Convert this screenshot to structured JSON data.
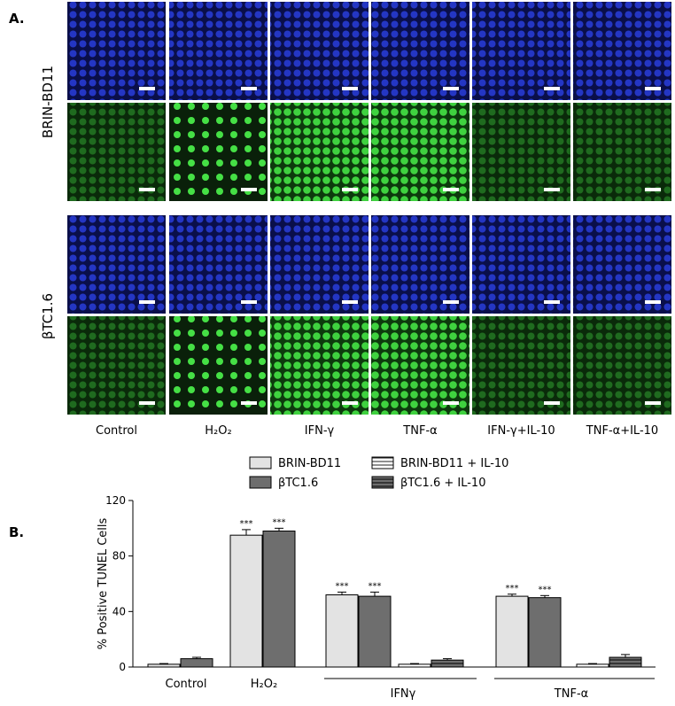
{
  "panel_a": {
    "label": "A.",
    "rows": [
      "BRIN-BD11",
      "βTC1.6"
    ],
    "columns": [
      "Control",
      "H₂O₂",
      "IFN-γ",
      "TNF-α",
      "IFN-γ+IL-10",
      "TNF-α+IL-10"
    ]
  },
  "panel_b": {
    "label": "B.",
    "chart_data": {
      "type": "bar",
      "y_label": "% Positive TUNEL Cells",
      "categories": [
        "Control",
        "H₂O₂",
        "IFNγ",
        "TNF-α"
      ],
      "series": [
        {
          "name": "BRIN-BD11",
          "color": "#e3e3e3",
          "values": [
            2,
            95,
            52,
            51
          ],
          "errors": [
            0.5,
            4,
            2,
            1.5
          ],
          "annotations": [
            null,
            "***",
            "***",
            "***"
          ]
        },
        {
          "name": "βTC1.6",
          "color": "#6e6e6e",
          "values": [
            6,
            98,
            51,
            50
          ],
          "errors": [
            1,
            2,
            3,
            1.5
          ],
          "annotations": [
            null,
            "***",
            "***",
            "***"
          ]
        },
        {
          "name": "BRIN-BD11 + IL-10",
          "color": "#ffffff",
          "pattern": "stripes",
          "values": [
            null,
            null,
            2,
            2
          ],
          "errors": [
            null,
            null,
            0.5,
            0.5
          ]
        },
        {
          "name": "βTC1.6 + IL-10",
          "color": "#6e6e6e",
          "pattern": "stripes",
          "values": [
            null,
            null,
            5,
            7
          ],
          "errors": [
            null,
            null,
            1,
            2
          ]
        }
      ],
      "ylim": [
        0,
        120
      ],
      "yticks": [
        0,
        40,
        80,
        120
      ]
    }
  }
}
